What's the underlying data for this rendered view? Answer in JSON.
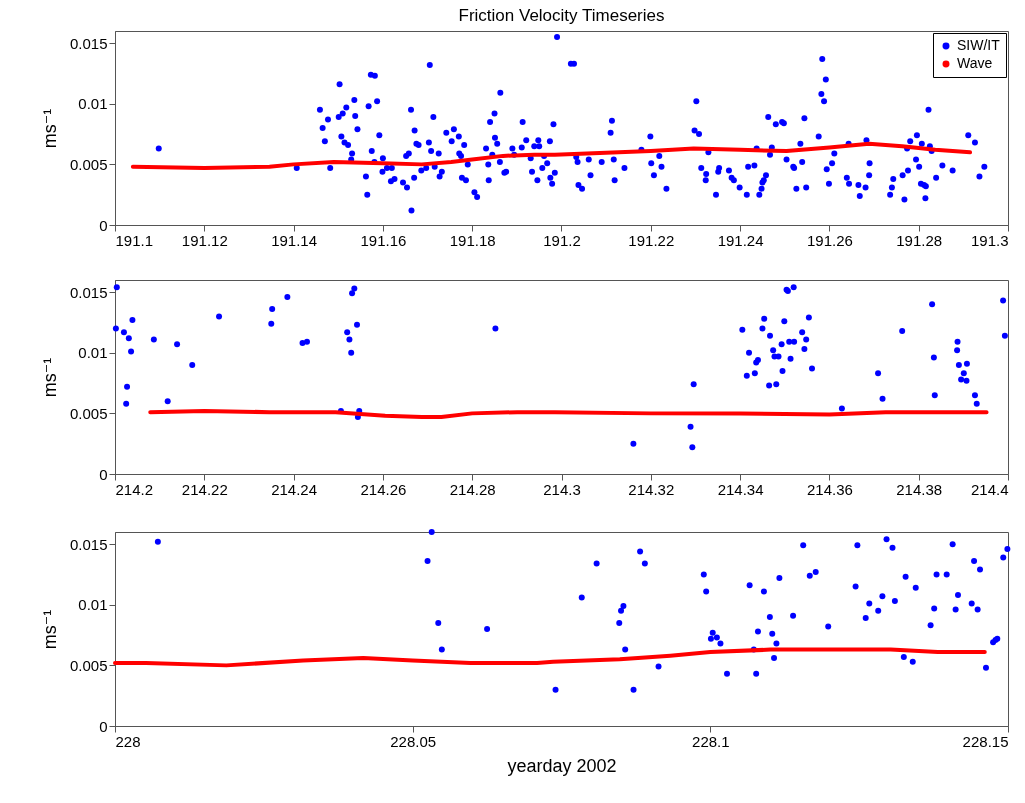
{
  "chart_data": [
    {
      "type": "scatter",
      "title": "Friction Velocity Timeseries",
      "ylabel": "ms⁻¹",
      "xlim": [
        191.1,
        191.3
      ],
      "xticks": [
        191.1,
        191.12,
        191.14,
        191.16,
        191.18,
        191.2,
        191.22,
        191.24,
        191.26,
        191.28,
        191.3
      ],
      "ylim": [
        0,
        0.016
      ],
      "yticks": [
        0,
        0.005,
        0.01,
        0.015
      ],
      "legend": "top right",
      "series": [
        {
          "name": "SIW/IT",
          "type": "scatter",
          "color": "#0000ff",
          "x": [
            191.1098,
            191.1407,
            191.1459,
            191.1465,
            191.147,
            191.1477,
            191.1482,
            191.1503,
            191.1501,
            191.151,
            191.1507,
            191.1518,
            191.1514,
            191.1522,
            191.1531,
            191.1529,
            191.1536,
            191.1538,
            191.1543,
            191.1562,
            191.1565,
            191.1568,
            191.1573,
            191.1582,
            191.1575,
            191.1581,
            191.1587,
            191.1592,
            191.16,
            191.1599,
            191.1609,
            191.162,
            191.1618,
            191.1626,
            191.1645,
            191.1654,
            191.1652,
            191.1658,
            191.1663,
            191.1664,
            191.167,
            191.1671,
            191.1675,
            191.168,
            191.1686,
            191.1697,
            191.1703,
            191.1705,
            191.1708,
            191.1713,
            191.1716,
            191.1725,
            191.1727,
            191.1732,
            191.1742,
            191.1754,
            191.1759,
            191.177,
            191.1771,
            191.1775,
            191.1782,
            191.1777,
            191.1786,
            191.179,
            191.1805,
            191.1811,
            191.1831,
            191.1836,
            191.1837,
            191.184,
            191.1845,
            191.185,
            191.1851,
            191.1856,
            191.1862,
            191.1863,
            191.1872,
            191.1876,
            191.189,
            191.1894,
            191.1913,
            191.1911,
            191.1921,
            191.1931,
            191.1934,
            191.1946,
            191.1939,
            191.1948,
            191.195,
            191.1957,
            191.1961,
            191.1968,
            191.1974,
            191.1975,
            191.1979,
            191.1982,
            191.1985,
            191.199,
            191.2021,
            191.2028,
            191.2033,
            191.2036,
            191.2038,
            191.2046,
            191.2061,
            191.2065,
            191.209,
            191.211,
            191.2113,
            191.2117,
            191.2119,
            191.2141,
            191.2179,
            191.2199,
            191.2201,
            191.2207,
            191.2219,
            191.2224,
            191.2235,
            191.2302,
            191.2298,
            191.2308,
            191.2313,
            191.2324,
            191.2323,
            191.2329,
            191.2346,
            191.2351,
            191.2353,
            191.2375,
            191.2381,
            191.2386,
            191.2399,
            191.2415,
            191.2418,
            191.2432,
            191.2437,
            191.2443,
            191.2448,
            191.245,
            191.2453,
            191.2458,
            191.2463,
            191.2467,
            191.2471,
            191.248,
            191.2494,
            191.2498,
            191.2504,
            191.2519,
            191.2521,
            191.2526,
            191.2535,
            191.2539,
            191.2544,
            191.2548,
            191.2576,
            191.2584,
            191.2582,
            191.2588,
            191.2592,
            191.2594,
            191.2599,
            191.2606,
            191.2611,
            191.2639,
            191.2644,
            191.2643,
            191.2665,
            191.2668,
            191.2681,
            191.2683,
            191.2689,
            191.269,
            191.2736,
            191.274,
            191.2743,
            191.2764,
            191.2768,
            191.2774,
            191.2776,
            191.2781,
            191.2794,
            191.2796,
            191.2801,
            191.2807,
            191.2805,
            191.2812,
            191.2816,
            191.2815,
            191.2822,
            191.2825,
            191.2829,
            191.2839,
            191.2853,
            191.2876,
            191.2911,
            191.2926,
            191.2936,
            191.2947
          ],
          "values": [
            0.0063,
            0.0047,
            0.0095,
            0.008,
            0.0069,
            0.0087,
            0.0047,
            0.0116,
            0.0089,
            0.0092,
            0.0073,
            0.0097,
            0.0068,
            0.0066,
            0.0059,
            0.0054,
            0.0103,
            0.009,
            0.0079,
            0.004,
            0.0025,
            0.0098,
            0.0124,
            0.0123,
            0.0061,
            0.0052,
            0.0102,
            0.0074,
            0.0055,
            0.0044,
            0.0047,
            0.0047,
            0.0036,
            0.0038,
            0.0035,
            0.0031,
            0.0057,
            0.0059,
            0.0095,
            0.0012,
            0.0039,
            0.0078,
            0.0067,
            0.0066,
            0.0045,
            0.0047,
            0.0068,
            0.0132,
            0.0061,
            0.0089,
            0.0048,
            0.0059,
            0.004,
            0.0044,
            0.0076,
            0.0069,
            0.0079,
            0.0073,
            0.0059,
            0.0057,
            0.0066,
            0.0039,
            0.0037,
            0.005,
            0.0027,
            0.0023,
            0.0063,
            0.005,
            0.0037,
            0.0085,
            0.0058,
            0.0092,
            0.0072,
            0.0067,
            0.0052,
            0.0109,
            0.0043,
            0.0044,
            0.0063,
            0.0058,
            0.0085,
            0.0064,
            0.007,
            0.0055,
            0.0044,
            0.0037,
            0.0065,
            0.007,
            0.0065,
            0.0047,
            0.0057,
            0.0051,
            0.0069,
            0.0039,
            0.0034,
            0.0083,
            0.0043,
            0.0155,
            0.0133,
            0.0133,
            0.0056,
            0.0052,
            0.0033,
            0.003,
            0.0054,
            0.0041,
            0.0052,
            0.0076,
            0.0086,
            0.0054,
            0.0037,
            0.0047,
            0.0062,
            0.0073,
            0.0051,
            0.0041,
            0.0057,
            0.0048,
            0.003,
            0.0102,
            0.0078,
            0.0075,
            0.0047,
            0.0042,
            0.0037,
            0.006,
            0.0025,
            0.0044,
            0.0047,
            0.0045,
            0.0039,
            0.0037,
            0.0031,
            0.0025,
            0.0048,
            0.0049,
            0.0063,
            0.0025,
            0.003,
            0.0035,
            0.0037,
            0.0041,
            0.0089,
            0.0058,
            0.0064,
            0.0083,
            0.0085,
            0.0084,
            0.0054,
            0.0048,
            0.0047,
            0.003,
            0.0067,
            0.0052,
            0.0088,
            0.0031,
            0.0073,
            0.0137,
            0.0108,
            0.0102,
            0.012,
            0.0046,
            0.0034,
            0.0051,
            0.0059,
            0.0039,
            0.0034,
            0.0067,
            0.0033,
            0.0024,
            0.0031,
            0.007,
            0.0041,
            0.0051,
            0.0025,
            0.0031,
            0.0038,
            0.0041,
            0.0021,
            0.0063,
            0.0045,
            0.0069,
            0.0054,
            0.0074,
            0.0048,
            0.0067,
            0.0034,
            0.0033,
            0.0032,
            0.0022,
            0.0095,
            0.0065,
            0.0061,
            0.0039,
            0.0049,
            0.0045,
            0.0074,
            0.0068,
            0.004,
            0.0048
          ]
        },
        {
          "name": "Wave",
          "type": "line",
          "color": "#ff0000",
          "x": [
            191.104,
            191.12,
            191.1346,
            191.14,
            191.149,
            191.16,
            191.1687,
            191.1753,
            191.18,
            191.1869,
            191.1939,
            191.1985,
            191.22,
            191.2296,
            191.24,
            191.2504,
            191.26,
            191.2689,
            191.2763,
            191.2837,
            191.2915
          ],
          "values": [
            0.0048,
            0.0047,
            0.0048,
            0.005,
            0.0052,
            0.0051,
            0.005,
            0.0052,
            0.0054,
            0.0057,
            0.0058,
            0.0058,
            0.0061,
            0.0063,
            0.0062,
            0.0061,
            0.0064,
            0.0067,
            0.0065,
            0.0062,
            0.006
          ]
        }
      ]
    },
    {
      "type": "scatter",
      "ylabel": "ms⁻¹",
      "xlim": [
        214.2,
        214.4
      ],
      "xticks": [
        214.2,
        214.22,
        214.24,
        214.26,
        214.28,
        214.3,
        214.32,
        214.34,
        214.36,
        214.38,
        214.4
      ],
      "ylim": [
        0,
        0.016
      ],
      "yticks": [
        0,
        0.005,
        0.01,
        0.015
      ],
      "series": [
        {
          "type": "scatter",
          "color": "#0000ff",
          "x": [
            214.2004,
            214.2002,
            214.202,
            214.2031,
            214.2039,
            214.2036,
            214.2027,
            214.2025,
            214.2087,
            214.2118,
            214.2139,
            214.2173,
            214.2233,
            214.235,
            214.2352,
            214.2386,
            214.242,
            214.243,
            214.2506,
            214.252,
            214.2525,
            214.2529,
            214.2531,
            214.2536,
            214.2542,
            214.2547,
            214.2544,
            214.2852,
            214.3161,
            214.3296,
            214.3289,
            214.3293,
            214.3405,
            214.3415,
            214.342,
            214.3433,
            214.3436,
            214.344,
            214.345,
            214.3454,
            214.3465,
            214.3467,
            214.3474,
            214.3477,
            214.3481,
            214.3486,
            214.3493,
            214.3495,
            214.3499,
            214.3504,
            214.3507,
            214.351,
            214.3513,
            214.352,
            214.3521,
            214.3539,
            214.3544,
            214.3548,
            214.3554,
            214.3561,
            214.3628,
            214.3709,
            214.3719,
            214.3763,
            214.383,
            214.3834,
            214.3836,
            214.3886,
            214.3887,
            214.389,
            214.3895,
            214.3901,
            214.3907,
            214.3908,
            214.3926,
            214.393,
            214.3989,
            214.3993
          ],
          "values": [
            0.0154,
            0.012,
            0.0117,
            0.0112,
            0.0127,
            0.0101,
            0.0072,
            0.0058,
            0.0111,
            0.006,
            0.0107,
            0.009,
            0.013,
            0.0124,
            0.0136,
            0.0146,
            0.0108,
            0.0109,
            0.0052,
            0.0117,
            0.0111,
            0.01,
            0.0149,
            0.0153,
            0.0123,
            0.0052,
            0.0047,
            0.012,
            0.0025,
            0.0074,
            0.0039,
            0.0022,
            0.0119,
            0.0081,
            0.01,
            0.0083,
            0.0092,
            0.0094,
            0.012,
            0.0128,
            0.0073,
            0.0114,
            0.0102,
            0.0097,
            0.0074,
            0.0097,
            0.0107,
            0.0085,
            0.0126,
            0.0152,
            0.0151,
            0.0109,
            0.0095,
            0.0154,
            0.0109,
            0.0117,
            0.0103,
            0.0111,
            0.0129,
            0.0087,
            0.0054,
            0.0083,
            0.0062,
            0.0118,
            0.014,
            0.0096,
            0.0065,
            0.0102,
            0.0109,
            0.009,
            0.0078,
            0.0083,
            0.0077,
            0.0091,
            0.0065,
            0.0058,
            0.0143,
            0.0114
          ]
        },
        {
          "type": "line",
          "color": "#ff0000",
          "x": [
            214.2079,
            214.22,
            214.2346,
            214.2494,
            214.2605,
            214.2687,
            214.2731,
            214.28,
            214.2901,
            214.2985,
            214.32,
            214.34,
            214.36,
            214.3726,
            214.3952
          ],
          "values": [
            0.0051,
            0.0052,
            0.0051,
            0.0051,
            0.0048,
            0.0047,
            0.0047,
            0.005,
            0.0051,
            0.0051,
            0.005,
            0.005,
            0.0049,
            0.0051,
            0.0051
          ]
        }
      ]
    },
    {
      "type": "scatter",
      "xlabel": "yearday 2002",
      "ylabel": "ms⁻¹",
      "xlim": [
        228,
        228.15
      ],
      "xticks": [
        228,
        228.05,
        228.1,
        228.15
      ],
      "ylim": [
        0,
        0.016
      ],
      "yticks": [
        0,
        0.005,
        0.01,
        0.015
      ],
      "series": [
        {
          "type": "scatter",
          "color": "#0000ff",
          "x": [
            228.0072,
            228.0532,
            228.0525,
            228.0543,
            228.0549,
            228.0625,
            228.074,
            228.0784,
            228.0809,
            228.0847,
            228.085,
            228.0854,
            228.0857,
            228.0871,
            228.0882,
            228.089,
            228.0913,
            228.0989,
            228.0993,
            228.1001,
            228.1004,
            228.1011,
            228.1017,
            228.1028,
            228.1066,
            228.1073,
            228.1077,
            228.108,
            228.109,
            228.11,
            228.1104,
            228.1107,
            228.1111,
            228.1116,
            228.1139,
            228.1156,
            228.1167,
            228.1177,
            228.1198,
            228.1244,
            228.1247,
            228.1261,
            228.1267,
            228.1282,
            228.1289,
            228.1296,
            228.1306,
            228.131,
            228.1325,
            228.1328,
            228.134,
            228.1345,
            228.137,
            228.1376,
            228.138,
            228.1397,
            228.1407,
            228.1412,
            228.1416,
            228.1439,
            228.1443,
            228.1449,
            228.1453,
            228.1463,
            228.1475,
            228.1479,
            228.1482,
            228.1492,
            228.1499
          ],
          "values": [
            0.0152,
            0.016,
            0.0136,
            0.0085,
            0.0063,
            0.008,
            0.003,
            0.0106,
            0.0134,
            0.0085,
            0.0095,
            0.0099,
            0.0063,
            0.003,
            0.0144,
            0.0134,
            0.0049,
            0.0125,
            0.0111,
            0.0072,
            0.0077,
            0.0073,
            0.0068,
            0.0043,
            0.0116,
            0.0063,
            0.0043,
            0.0078,
            0.0111,
            0.009,
            0.0076,
            0.0056,
            0.0068,
            0.0122,
            0.0091,
            0.0149,
            0.0124,
            0.0127,
            0.0082,
            0.0115,
            0.0149,
            0.0089,
            0.0101,
            0.0095,
            0.0107,
            0.0154,
            0.0147,
            0.0103,
            0.0057,
            0.0123,
            0.0053,
            0.0114,
            0.0083,
            0.0097,
            0.0125,
            0.0125,
            0.015,
            0.0096,
            0.0108,
            0.0101,
            0.0136,
            0.0096,
            0.0129,
            0.0048,
            0.0069,
            0.0071,
            0.0072,
            0.0139,
            0.0146
          ]
        },
        {
          "type": "line",
          "color": "#ff0000",
          "x": [
            228,
            228.0052,
            228.0187,
            228.0316,
            228.0417,
            228.05,
            228.0597,
            228.0709,
            228.0736,
            228.0848,
            228.0933,
            228.1,
            228.1101,
            228.1213,
            228.1303,
            228.1382,
            228.1461
          ],
          "values": [
            0.0052,
            0.0052,
            0.005,
            0.0054,
            0.0056,
            0.0054,
            0.0052,
            0.0052,
            0.0053,
            0.0055,
            0.0058,
            0.0061,
            0.0063,
            0.0063,
            0.0063,
            0.0061,
            0.0061
          ]
        }
      ]
    }
  ]
}
